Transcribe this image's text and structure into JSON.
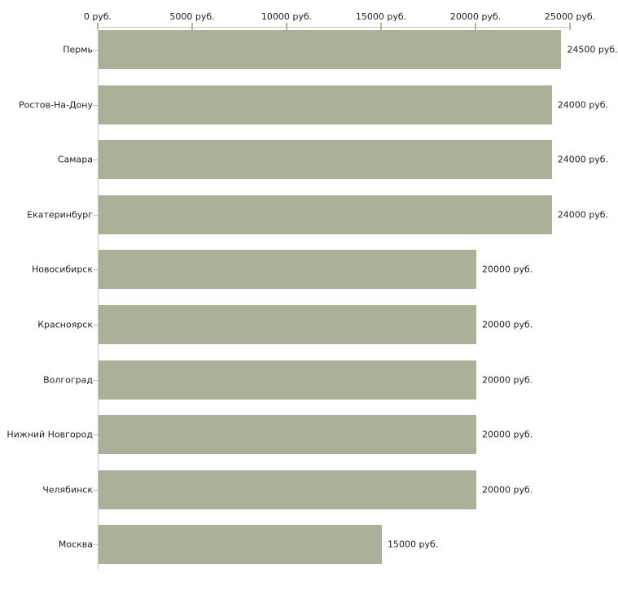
{
  "chart_data": {
    "type": "bar",
    "orientation": "horizontal",
    "title": "",
    "xlabel": "",
    "ylabel": "",
    "grid": false,
    "legend": false,
    "categories": [
      "Пермь",
      "Ростов-На-Дону",
      "Самара",
      "Екатеринбург",
      "Новосибирск",
      "Красноярск",
      "Волгоград",
      "Нижний Новгород",
      "Челябинск",
      "Москва"
    ],
    "values": [
      24500,
      24000,
      24000,
      24000,
      20000,
      20000,
      20000,
      20000,
      20000,
      15000
    ],
    "value_labels": [
      "24500 руб.",
      "24000 руб.",
      "24000 руб.",
      "24000 руб.",
      "20000 руб.",
      "20000 руб.",
      "20000 руб.",
      "20000 руб.",
      "20000 руб.",
      "15000 руб."
    ],
    "x_axis": {
      "position": "top",
      "range": [
        0,
        25000
      ],
      "ticks": [
        0,
        5000,
        10000,
        15000,
        20000,
        25000
      ],
      "tick_labels": [
        "0 руб.",
        "5000 руб.",
        "10000 руб.",
        "15000 руб.",
        "20000 руб.",
        "25000 руб."
      ]
    },
    "colors": {
      "bar": "#aab199",
      "axis_line": "#c9c9c9",
      "tick_mark": "#b6b88d",
      "row_tick_mark": "#c2c3a8",
      "text": "#222222",
      "background": "#ffffff"
    }
  }
}
